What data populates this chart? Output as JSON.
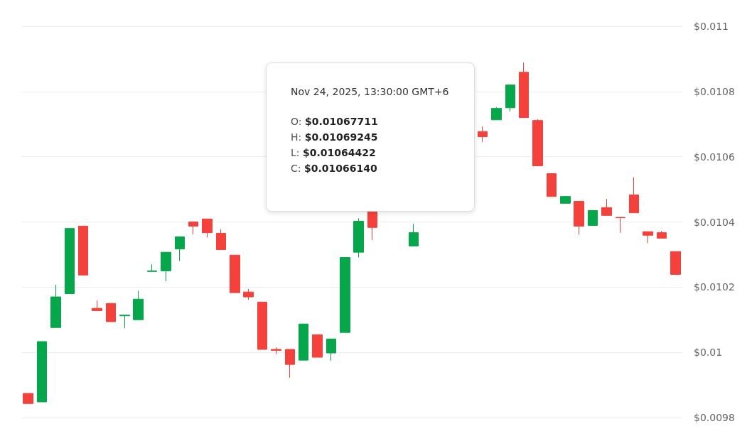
{
  "chart_data": {
    "type": "candlestick",
    "categories": [
      null,
      null,
      null,
      null,
      null,
      null,
      null,
      null,
      null,
      null,
      null,
      null,
      null,
      null,
      null,
      null,
      null,
      null,
      null,
      null,
      null,
      null,
      null,
      null,
      null,
      null,
      null,
      null,
      null,
      null,
      null,
      null,
      null,
      null,
      null,
      null,
      null,
      null,
      null,
      null,
      null,
      null,
      null,
      null,
      null,
      null,
      null,
      null
    ],
    "ohlc": [
      [
        0.009874,
        0.009874,
        0.009843,
        0.009843
      ],
      [
        0.009848,
        0.010033,
        0.009848,
        0.010033
      ],
      [
        0.010076,
        0.010207,
        0.010076,
        0.01017
      ],
      [
        0.01018,
        0.01038,
        0.01018,
        0.01038
      ],
      [
        0.010387,
        0.010387,
        0.010237,
        0.010237
      ],
      [
        0.010135,
        0.010159,
        0.010128,
        0.010128
      ],
      [
        0.01015,
        0.01015,
        0.010094,
        0.010094
      ],
      [
        0.010112,
        0.010114,
        0.010074,
        0.010114
      ],
      [
        0.0101,
        0.010189,
        0.0101,
        0.010163
      ],
      [
        0.010248,
        0.01027,
        0.010248,
        0.01025
      ],
      [
        0.01025,
        0.010307,
        0.010218,
        0.010307
      ],
      [
        0.010317,
        0.010354,
        0.01028,
        0.010354
      ],
      [
        0.0104,
        0.0104,
        0.010361,
        0.010387
      ],
      [
        0.010409,
        0.010409,
        0.010352,
        0.010367
      ],
      [
        0.010365,
        0.010378,
        0.010315,
        0.010315
      ],
      [
        0.010298,
        0.010298,
        0.010183,
        0.010183
      ],
      [
        0.010185,
        0.010194,
        0.010161,
        0.01017
      ],
      [
        0.010154,
        0.010154,
        0.010009,
        0.010009
      ],
      [
        0.010009,
        0.010015,
        0.009994,
        0.010006
      ],
      [
        0.010009,
        0.010009,
        0.009922,
        0.009963
      ],
      [
        0.009976,
        0.010087,
        0.009976,
        0.010087
      ],
      [
        0.010054,
        0.010054,
        0.009985,
        0.009985
      ],
      [
        0.009998,
        0.010041,
        0.009974,
        0.010041
      ],
      [
        0.010061,
        0.010291,
        0.010061,
        0.010291
      ],
      [
        0.010307,
        0.010411,
        0.010291,
        0.010402
      ],
      [
        0.010435,
        0.010435,
        0.010344,
        0.010383
      ],
      null,
      null,
      [
        0.010326,
        0.010394,
        0.010326,
        0.010367
      ],
      null,
      null,
      null,
      null,
      [
        0.01067711,
        0.01069245,
        0.01064422,
        0.0106614
      ],
      [
        0.010713,
        0.010752,
        0.010713,
        0.010748
      ],
      [
        0.01075,
        0.01082,
        0.010739,
        0.01082
      ],
      [
        0.010859,
        0.010889,
        0.01072,
        0.01072
      ],
      [
        0.010711,
        0.010715,
        0.010572,
        0.010572
      ],
      [
        0.010548,
        0.010548,
        0.010478,
        0.010478
      ],
      [
        0.010457,
        0.010478,
        0.010457,
        0.010478
      ],
      [
        0.010463,
        0.010463,
        0.010361,
        0.010387
      ],
      [
        0.010389,
        0.010435,
        0.010389,
        0.010435
      ],
      [
        0.010444,
        0.01047,
        0.01042,
        0.01042
      ],
      [
        0.010414,
        0.010414,
        0.010367,
        0.010413
      ],
      [
        0.010483,
        0.010537,
        0.010428,
        0.010428
      ],
      [
        0.01037,
        0.01037,
        0.010335,
        0.010359
      ],
      [
        0.010367,
        0.010372,
        0.01035,
        0.01035
      ],
      [
        0.010309,
        0.010309,
        0.010239,
        0.010239
      ]
    ],
    "colors": [
      "#f5413b",
      "#05a74a",
      "#05a74a",
      "#05a74a",
      "#f5413b",
      "#f5413b",
      "#f5413b",
      "#05a74a",
      "#05a74a",
      "#05a74a",
      "#05a74a",
      "#05a74a",
      "#f5413b",
      "#f5413b",
      "#f5413b",
      "#f5413b",
      "#f5413b",
      "#f5413b",
      "#f5413b",
      "#f5413b",
      "#05a74a",
      "#f5413b",
      "#05a74a",
      "#05a74a",
      "#05a74a",
      "#f5413b",
      null,
      null,
      "#05a74a",
      null,
      null,
      null,
      null,
      "#f5413b",
      "#05a74a",
      "#05a74a",
      "#f5413b",
      "#f5413b",
      "#f5413b",
      "#05a74a",
      "#f5413b",
      "#05a74a",
      "#f5413b",
      "#f5413b",
      "#f5413b",
      "#f5413b",
      "#f5413b",
      "#f5413b"
    ],
    "ylim": [
      0.0098,
      0.011
    ],
    "yticks": [
      {
        "value": 0.0098,
        "label": "$0.0098"
      },
      {
        "value": 0.01,
        "label": "$0.01"
      },
      {
        "value": 0.0102,
        "label": "$0.0102"
      },
      {
        "value": 0.0104,
        "label": "$0.0104"
      },
      {
        "value": 0.0106,
        "label": "$0.0106"
      },
      {
        "value": 0.0108,
        "label": "$0.0108"
      },
      {
        "value": 0.011,
        "label": "$0.011"
      }
    ],
    "grid": "y",
    "annotations": [
      "Nov 24, 2025, 13:30:00 GMT+6",
      "O: $0.01067711",
      "H: $0.01069245",
      "L: $0.01064422",
      "C: $0.01066140"
    ]
  }
}
